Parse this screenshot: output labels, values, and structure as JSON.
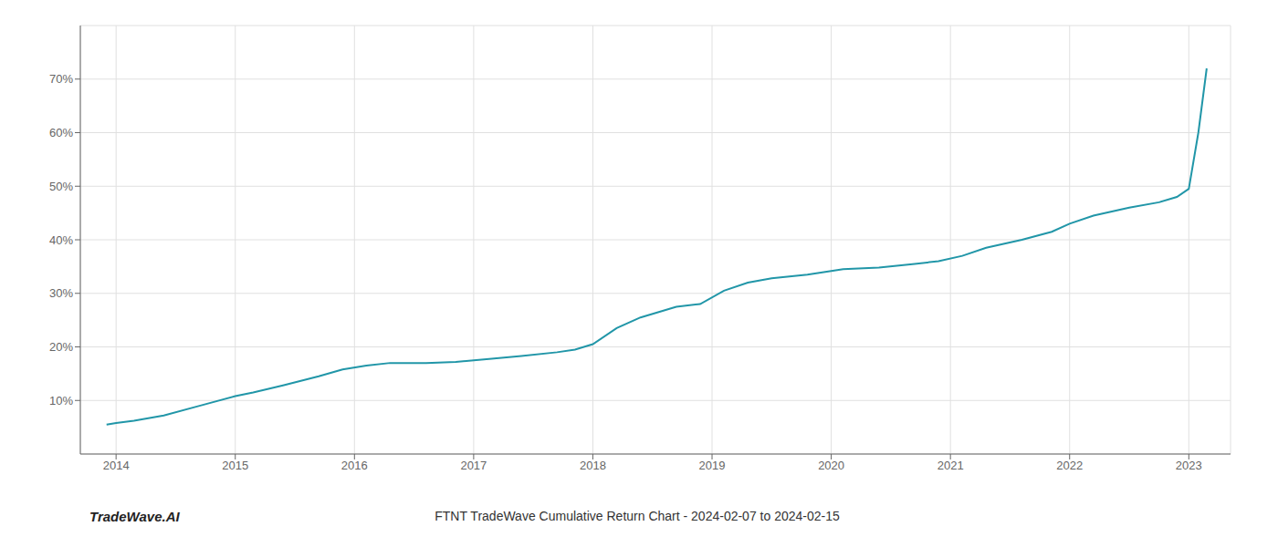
{
  "chart_data": {
    "type": "line",
    "title": "FTNT TradeWave Cumulative Return Chart - 2024-02-07 to 2024-02-15",
    "annotations": [
      "TradeWave.AI"
    ],
    "x": [
      2013.92,
      2014.0,
      2014.15,
      2014.4,
      2014.7,
      2015.0,
      2015.15,
      2015.4,
      2015.7,
      2015.9,
      2016.1,
      2016.3,
      2016.6,
      2016.85,
      2017.0,
      2017.15,
      2017.4,
      2017.7,
      2017.85,
      2018.0,
      2018.2,
      2018.4,
      2018.7,
      2018.9,
      2019.1,
      2019.3,
      2019.5,
      2019.8,
      2019.95,
      2020.1,
      2020.4,
      2020.7,
      2020.9,
      2021.1,
      2021.3,
      2021.6,
      2021.85,
      2022.0,
      2022.2,
      2022.5,
      2022.75,
      2022.9,
      2023.0,
      2023.08,
      2023.15
    ],
    "values": [
      5.5,
      5.8,
      6.2,
      7.2,
      9.0,
      10.8,
      11.5,
      12.8,
      14.5,
      15.8,
      16.5,
      17.0,
      17.0,
      17.2,
      17.5,
      17.8,
      18.3,
      19.0,
      19.5,
      20.5,
      23.5,
      25.5,
      27.5,
      28.0,
      30.5,
      32.0,
      32.8,
      33.5,
      34.0,
      34.5,
      34.8,
      35.5,
      36.0,
      37.0,
      38.5,
      40.0,
      41.5,
      43.0,
      44.5,
      46.0,
      47.0,
      48.0,
      49.5,
      60.0,
      72.0
    ],
    "color": "#2196a8",
    "xlim": [
      2013.7,
      2023.35
    ],
    "ylim": [
      0,
      80
    ],
    "xticks": [
      2014,
      2015,
      2016,
      2017,
      2018,
      2019,
      2020,
      2021,
      2022,
      2023
    ],
    "yticks": [
      {
        "value": 10,
        "label": "10%"
      },
      {
        "value": 20,
        "label": "20%"
      },
      {
        "value": 30,
        "label": "30%"
      },
      {
        "value": 40,
        "label": "40%"
      },
      {
        "value": 50,
        "label": "50%"
      },
      {
        "value": 60,
        "label": "60%"
      },
      {
        "value": 70,
        "label": "70%"
      }
    ],
    "grid": true
  }
}
